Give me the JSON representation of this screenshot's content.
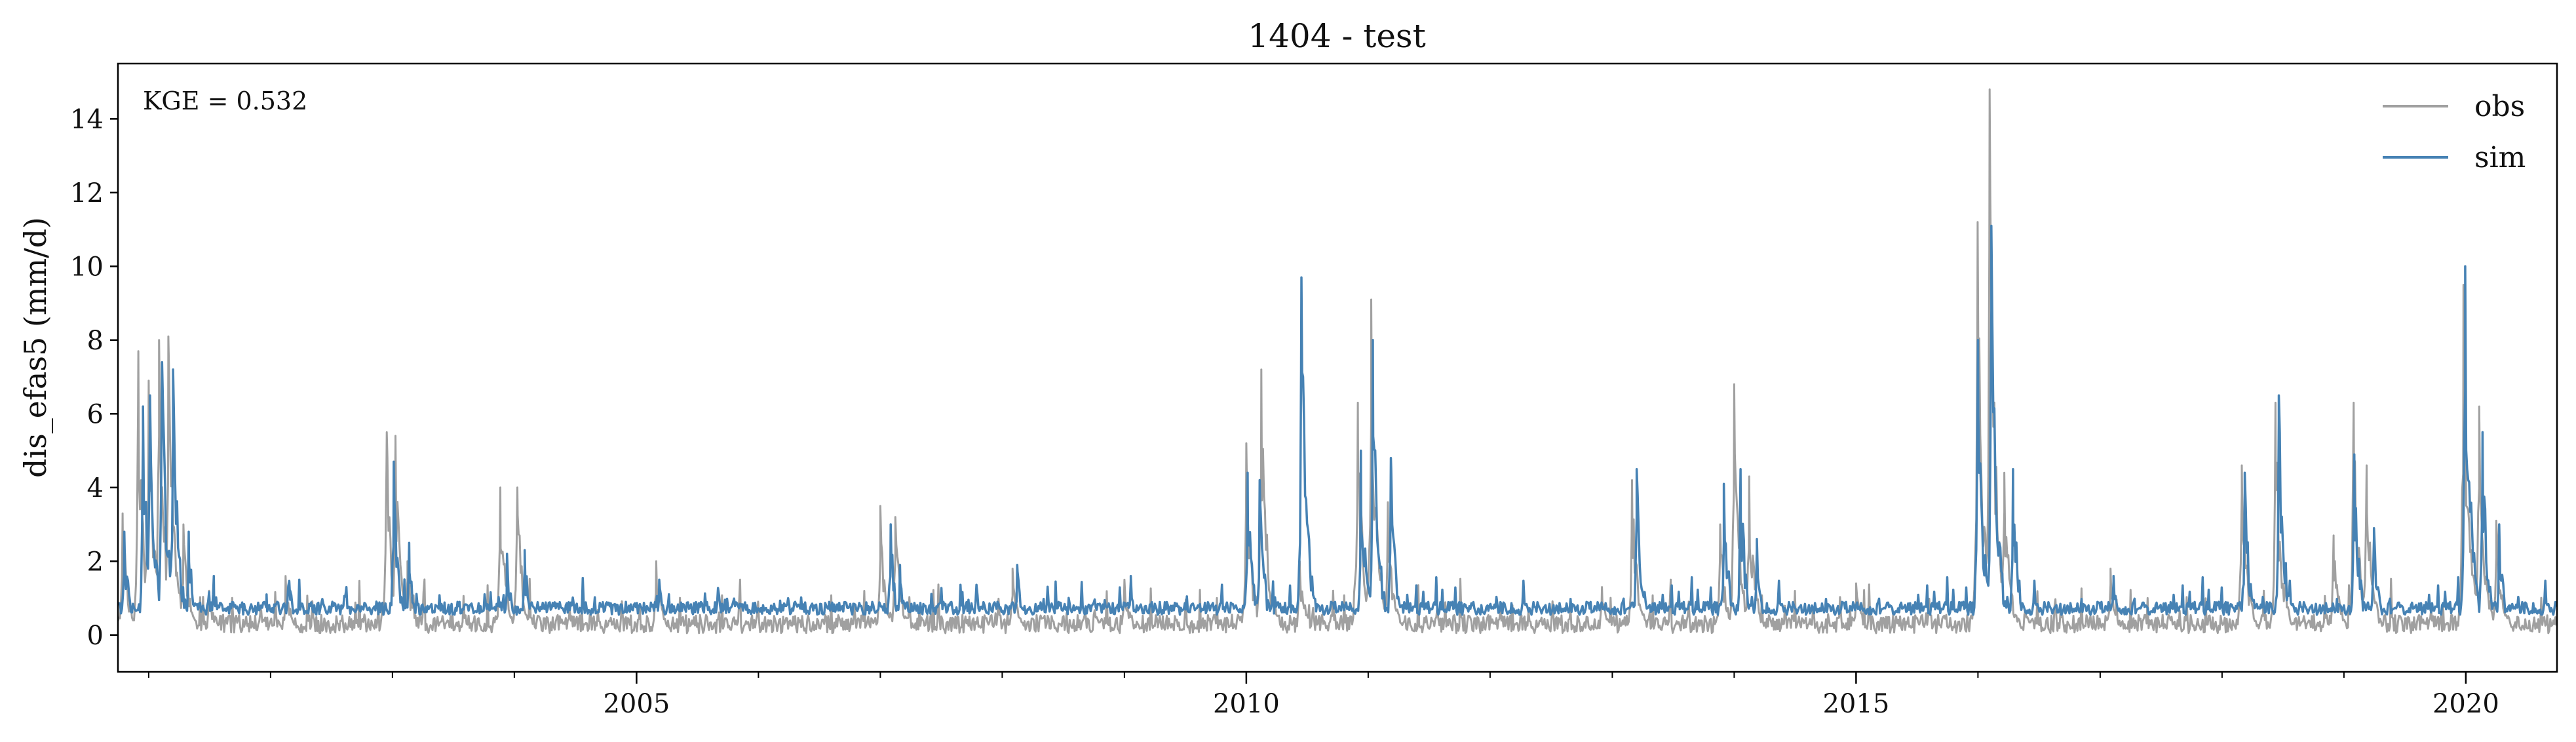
{
  "chart_data": {
    "type": "line",
    "title": "1404 - test",
    "xlabel": "",
    "ylabel": "dis_efas5 (mm/d)",
    "xlim": [
      "2000-10-01",
      "2020-09-30"
    ],
    "ylim": [
      -1,
      15.5
    ],
    "y_ticks": [
      0,
      2,
      4,
      6,
      8,
      10,
      12,
      14
    ],
    "x_ticks": [
      "2005",
      "2010",
      "2015",
      "2020"
    ],
    "annotation": "KGE = 0.532",
    "legend": {
      "position": "top-right"
    },
    "series": [
      {
        "name": "obs",
        "color": "#a0a0a0",
        "base": 0.05,
        "x": [
          "2000-10-15",
          "2000-12-01",
          "2001-01-01",
          "2001-02-01",
          "2001-03-01",
          "2001-04-15",
          "2001-07-01",
          "2001-12-01",
          "2002-02-15",
          "2002-12-15",
          "2003-01-10",
          "2003-02-15",
          "2003-11-20",
          "2004-01-10",
          "2005-03-01",
          "2007-01-01",
          "2007-02-15",
          "2008-02-01",
          "2009-01-01",
          "2010-01-01",
          "2010-02-15",
          "2010-06-10",
          "2010-12-01",
          "2011-01-10",
          "2011-03-01",
          "2012-12-01",
          "2013-03-01",
          "2013-11-20",
          "2014-01-01",
          "2014-02-15",
          "2015-01-01",
          "2015-12-31",
          "2016-02-05",
          "2016-03-20",
          "2017-02-01",
          "2018-03-01",
          "2018-06-10",
          "2018-12-01",
          "2019-01-30",
          "2019-03-10",
          "2019-12-25",
          "2020-02-10",
          "2020-04-01"
        ],
        "values": [
          3.3,
          7.7,
          6.9,
          8.0,
          8.1,
          3.0,
          1.2,
          0.8,
          1.6,
          5.5,
          5.4,
          2.0,
          4.0,
          4.0,
          2.0,
          3.5,
          3.2,
          1.8,
          1.5,
          5.2,
          7.2,
          2.0,
          6.3,
          9.1,
          3.6,
          1.3,
          4.2,
          3.0,
          6.8,
          4.3,
          1.4,
          11.2,
          14.8,
          4.4,
          1.8,
          4.6,
          6.3,
          2.7,
          6.3,
          4.6,
          9.5,
          6.2,
          3.1
        ]
      },
      {
        "name": "sim",
        "color": "#4682b4",
        "base": 0.55,
        "x": [
          "2000-10-20",
          "2000-12-15",
          "2001-01-05",
          "2001-02-10",
          "2001-03-15",
          "2001-05-01",
          "2001-07-15",
          "2001-12-20",
          "2002-03-01",
          "2003-01-05",
          "2003-02-20",
          "2003-12-10",
          "2004-02-01",
          "2005-03-10",
          "2007-02-01",
          "2007-03-01",
          "2008-02-15",
          "2009-01-20",
          "2010-01-05",
          "2010-02-10",
          "2010-06-15",
          "2010-12-10",
          "2011-01-15",
          "2011-03-10",
          "2013-03-15",
          "2013-12-01",
          "2014-01-20",
          "2014-03-10",
          "2016-01-01",
          "2016-02-10",
          "2016-04-15",
          "2017-02-10",
          "2018-03-10",
          "2018-06-20",
          "2019-02-01",
          "2019-04-01",
          "2019-12-30",
          "2020-02-20",
          "2020-04-10"
        ],
        "values": [
          2.8,
          6.2,
          6.5,
          7.4,
          7.2,
          2.8,
          1.6,
          1.1,
          1.2,
          4.7,
          2.5,
          2.2,
          2.3,
          1.5,
          3.0,
          1.9,
          1.9,
          1.6,
          4.4,
          4.2,
          9.7,
          5.0,
          8.0,
          4.8,
          4.5,
          4.1,
          4.5,
          2.6,
          8.0,
          11.1,
          4.5,
          1.6,
          4.4,
          6.5,
          4.9,
          2.9,
          10.0,
          5.5,
          3.0
        ]
      }
    ]
  }
}
